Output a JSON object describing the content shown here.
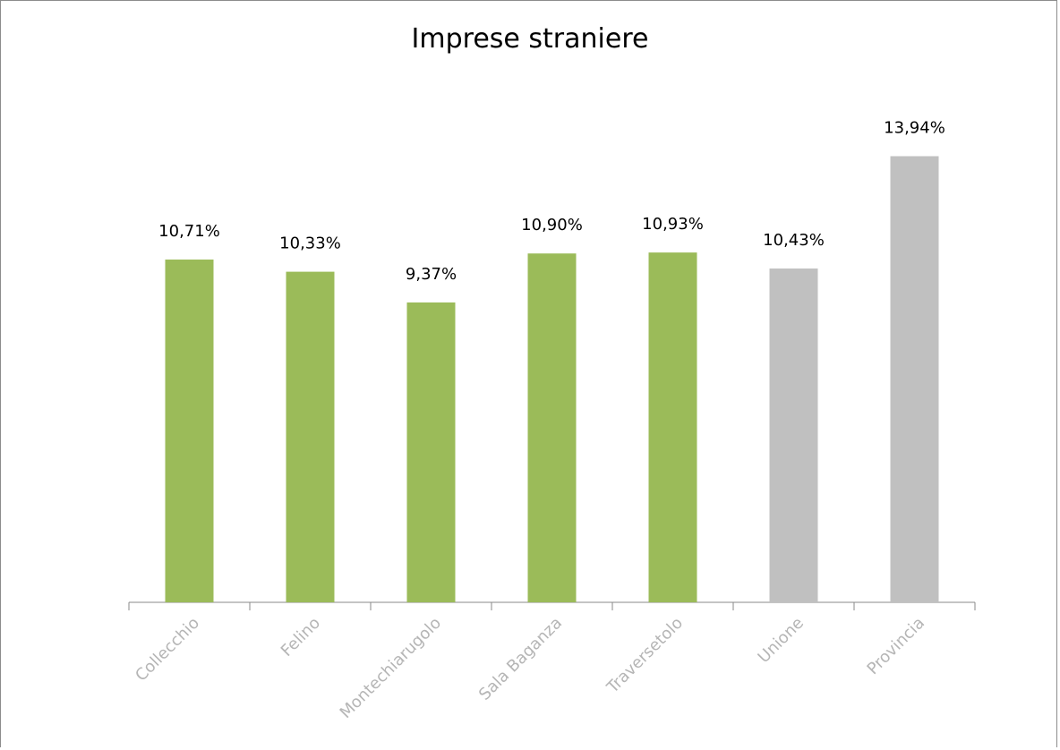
{
  "chart_data": {
    "type": "bar",
    "title": "Imprese straniere",
    "categories": [
      "Collecchio",
      "Felino",
      "Montechiarugolo",
      "Sala Baganza",
      "Traversetolo",
      "Unione",
      "Provincia"
    ],
    "values": [
      10.71,
      10.33,
      9.37,
      10.9,
      10.93,
      10.43,
      13.94
    ],
    "data_labels": [
      "10,71%",
      "10,33%",
      "9,37%",
      "10,90%",
      "10,93%",
      "10,43%",
      "13,94%"
    ],
    "colors": [
      "#9bbb59",
      "#9bbb59",
      "#9bbb59",
      "#9bbb59",
      "#9bbb59",
      "#c0c0c0",
      "#c0c0c0"
    ],
    "ylim": [
      0,
      16
    ],
    "xlabel": "",
    "ylabel": "",
    "grid": false,
    "legend": "none"
  }
}
